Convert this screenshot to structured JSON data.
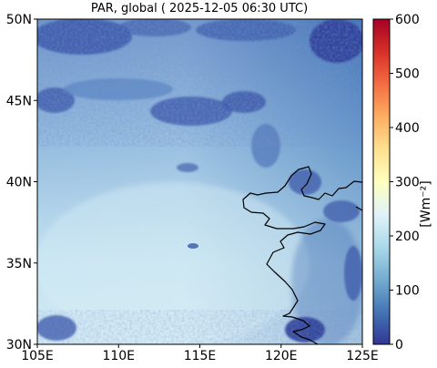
{
  "title": "PAR, global ( 2025-12-05 06:30 UTC)",
  "map": {
    "lon_range": [
      105,
      125
    ],
    "lat_range": [
      30,
      50
    ],
    "x_ticks": [
      {
        "value": 105,
        "label": "105E"
      },
      {
        "value": 110,
        "label": "110E"
      },
      {
        "value": 115,
        "label": "115E"
      },
      {
        "value": 120,
        "label": "120E"
      },
      {
        "value": 125,
        "label": "125E"
      }
    ],
    "y_ticks": [
      {
        "value": 30,
        "label": "30N"
      },
      {
        "value": 35,
        "label": "35N"
      },
      {
        "value": 40,
        "label": "40N"
      },
      {
        "value": 45,
        "label": "45N"
      },
      {
        "value": 50,
        "label": "50N"
      }
    ]
  },
  "colorbar": {
    "label": "[Wm⁻²]",
    "range": [
      0,
      600
    ],
    "ticks": [
      {
        "value": 0,
        "label": "0"
      },
      {
        "value": 100,
        "label": "100"
      },
      {
        "value": 200,
        "label": "200"
      },
      {
        "value": 300,
        "label": "300"
      },
      {
        "value": 400,
        "label": "400"
      },
      {
        "value": 500,
        "label": "500"
      },
      {
        "value": 600,
        "label": "600"
      }
    ],
    "colormap": "RdYlBu_r"
  },
  "colors": {
    "field_bright": "#d3ebf4",
    "field_mid": "#8fc0df",
    "field_dim": "#5a8fc6",
    "cloud": "#3a56a8",
    "cloud_dense": "#2f3f98",
    "coastline": "#000000"
  }
}
